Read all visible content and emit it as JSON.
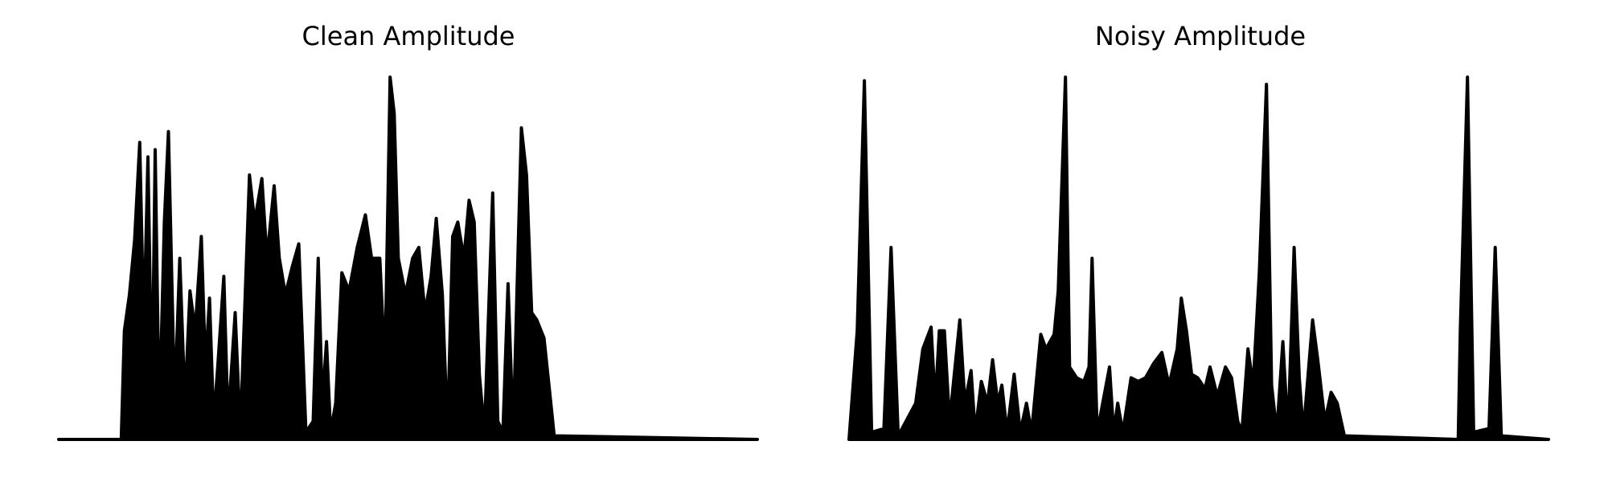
{
  "chart_data": [
    {
      "type": "area",
      "title": "Clean Amplitude",
      "color": "#000000",
      "xlim": [
        0,
        681
      ],
      "ylim": [
        0,
        1
      ],
      "x": [
        0,
        61,
        64,
        69,
        74,
        79,
        83,
        87,
        91,
        94,
        98,
        103,
        107,
        113,
        118,
        123,
        128,
        133,
        139,
        143,
        147,
        151,
        155,
        161,
        165,
        172,
        177,
        186,
        191,
        198,
        203,
        210,
        215,
        221,
        228,
        234,
        241,
        248,
        253,
        257,
        261,
        265,
        270,
        276,
        283,
        291,
        299,
        305,
        313,
        318,
        323,
        327,
        331,
        338,
        345,
        351,
        357,
        363,
        368,
        374,
        379,
        384,
        389,
        395,
        400,
        405,
        410,
        415,
        423,
        428,
        433,
        438,
        443,
        451,
        456,
        461,
        466,
        473,
        479,
        483,
        681
      ],
      "values": [
        0,
        0,
        0.3,
        0.4,
        0.55,
        0.82,
        0.3,
        0.78,
        0.1,
        0.8,
        0.05,
        0.6,
        0.85,
        0.1,
        0.5,
        0.1,
        0.41,
        0.3,
        0.56,
        0.2,
        0.39,
        0.05,
        0.2,
        0.45,
        0.05,
        0.35,
        0.02,
        0.73,
        0.6,
        0.72,
        0.5,
        0.7,
        0.5,
        0.4,
        0.48,
        0.54,
        0.02,
        0.05,
        0.5,
        0.1,
        0.27,
        0.02,
        0.1,
        0.46,
        0.41,
        0.53,
        0.62,
        0.5,
        0.5,
        0.2,
        1.0,
        0.9,
        0.5,
        0.4,
        0.5,
        0.53,
        0.35,
        0.45,
        0.61,
        0.4,
        0.02,
        0.56,
        0.6,
        0.5,
        0.66,
        0.6,
        0.18,
        0.02,
        0.68,
        0.05,
        0.02,
        0.43,
        0.02,
        0.86,
        0.73,
        0.35,
        0.33,
        0.28,
        0.12,
        0.01,
        0
      ]
    },
    {
      "type": "area",
      "title": "Noisy Amplitude",
      "color": "#000000",
      "xlim": [
        0,
        682
      ],
      "ylim": [
        0,
        1
      ],
      "x": [
        0,
        8,
        15,
        22,
        34,
        41,
        48,
        65,
        72,
        80,
        84,
        88,
        93,
        98,
        108,
        113,
        119,
        123,
        129,
        135,
        140,
        145,
        149,
        154,
        161,
        167,
        173,
        178,
        187,
        192,
        200,
        204,
        211,
        215,
        222,
        229,
        234,
        237,
        242,
        254,
        258,
        262,
        267,
        275,
        282,
        289,
        297,
        305,
        312,
        320,
        324,
        329,
        334,
        340,
        347,
        352,
        359,
        367,
        373,
        379,
        383,
        389,
        394,
        400,
        407,
        412,
        417,
        423,
        428,
        434,
        439,
        443,
        452,
        457,
        464,
        470,
        476,
        483,
        594,
        596,
        603,
        609,
        624,
        630,
        636,
        682
      ],
      "values": [
        0,
        0.3,
        0.99,
        0.02,
        0.03,
        0.53,
        0.01,
        0.1,
        0.25,
        0.31,
        0.1,
        0.3,
        0.3,
        0.05,
        0.33,
        0.1,
        0.19,
        0.02,
        0.16,
        0.1,
        0.22,
        0.1,
        0.15,
        0.02,
        0.18,
        0.02,
        0.1,
        0.02,
        0.29,
        0.25,
        0.29,
        0.41,
        1.0,
        0.2,
        0.17,
        0.16,
        0.2,
        0.5,
        0.02,
        0.2,
        0.02,
        0.1,
        0.02,
        0.17,
        0.16,
        0.17,
        0.21,
        0.24,
        0.15,
        0.25,
        0.39,
        0.3,
        0.18,
        0.17,
        0.14,
        0.2,
        0.12,
        0.2,
        0.17,
        0.05,
        0.02,
        0.25,
        0.15,
        0.46,
        0.98,
        0.15,
        0.02,
        0.27,
        0.02,
        0.53,
        0.17,
        0.02,
        0.33,
        0.22,
        0.05,
        0.13,
        0.1,
        0.01,
        0,
        0.3,
        1.0,
        0.02,
        0.03,
        0.53,
        0.01,
        0
      ]
    }
  ]
}
